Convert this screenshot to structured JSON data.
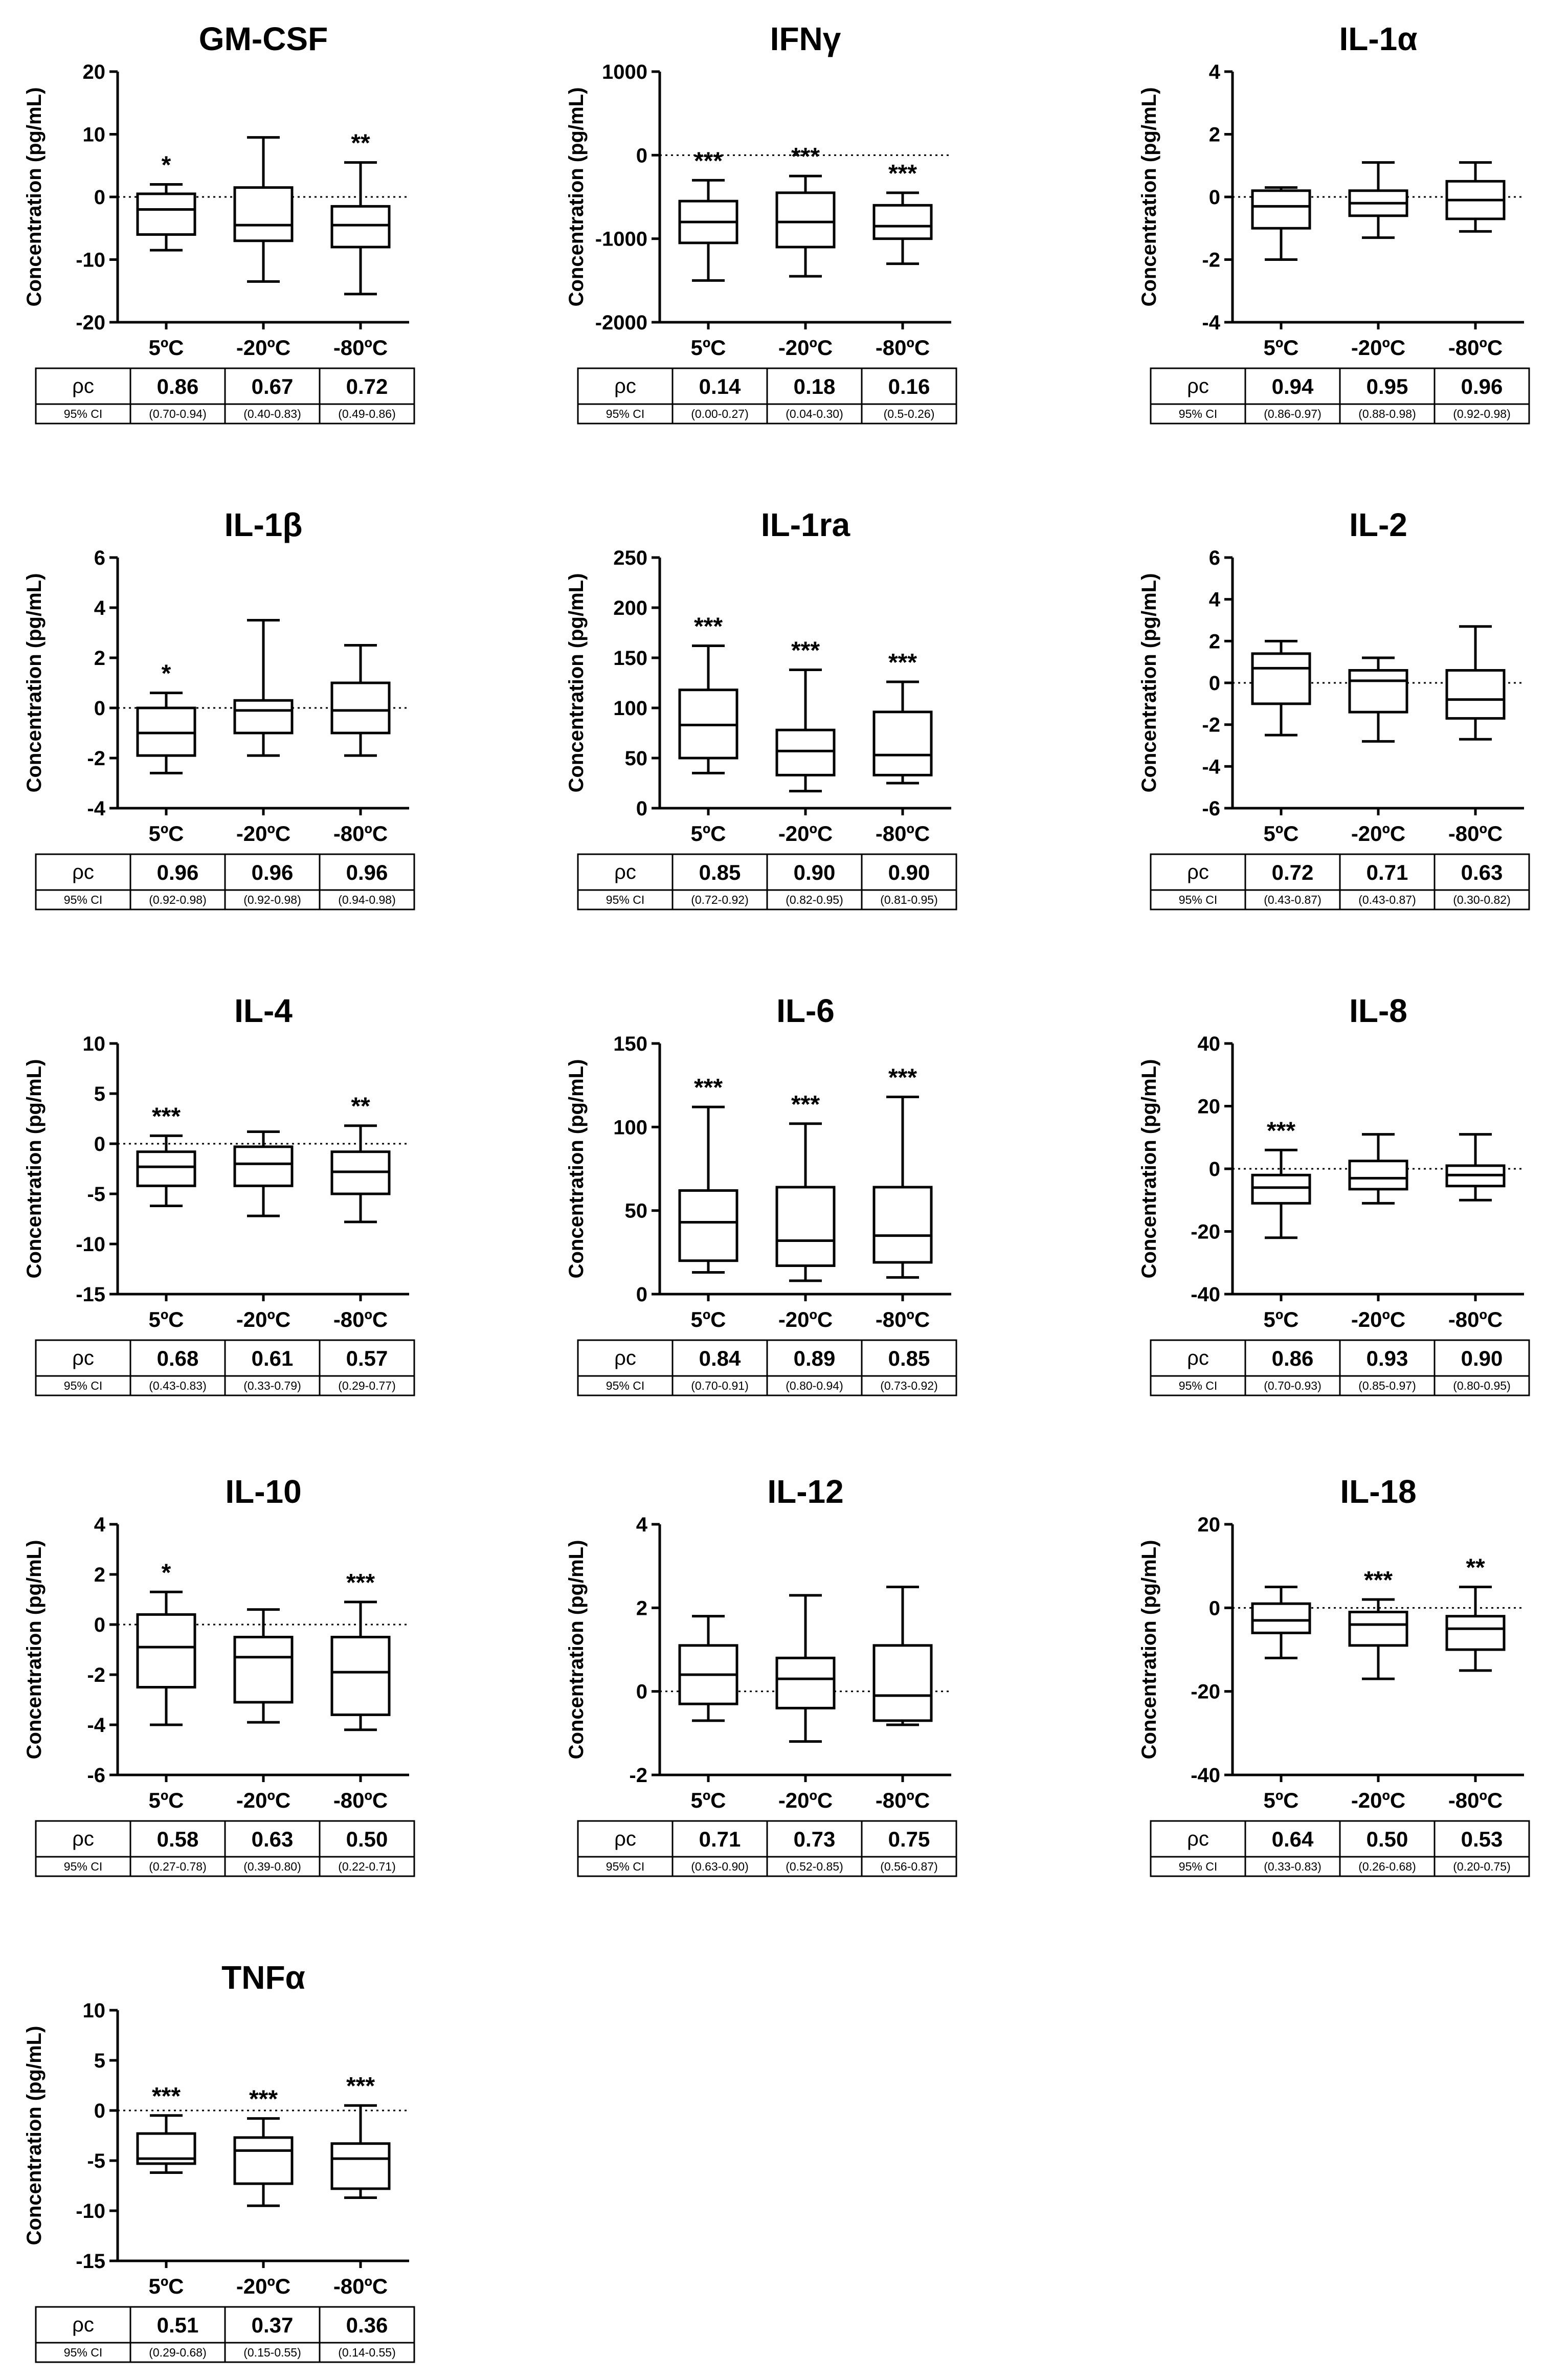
{
  "figure": {
    "ylabel": "Concentration (pg/mL)",
    "categories": [
      "5ºC",
      "-20ºC",
      "-80ºC"
    ],
    "row_labels": {
      "rho": "ρc",
      "ci": "95% CI"
    }
  },
  "chart_data": [
    {
      "type": "boxplot",
      "title": "GM-CSF",
      "ylabel": "Concentration (pg/mL)",
      "ylim": [
        -20,
        20
      ],
      "yticks": [
        -20,
        -10,
        0,
        10,
        20
      ],
      "categories": [
        "5ºC",
        "-20ºC",
        "-80ºC"
      ],
      "boxes": [
        {
          "min": -8.5,
          "q1": -6,
          "median": -2,
          "q3": 0.5,
          "max": 2,
          "sig": "*"
        },
        {
          "min": -13.5,
          "q1": -7,
          "median": -4.5,
          "q3": 1.5,
          "max": 9.5,
          "sig": ""
        },
        {
          "min": -15.5,
          "q1": -8,
          "median": -4.5,
          "q3": -1.5,
          "max": 5.5,
          "sig": "**"
        }
      ],
      "rho": [
        "0.86",
        "0.67",
        "0.72"
      ],
      "ci": [
        "(0.70-0.94)",
        "(0.40-0.83)",
        "(0.49-0.86)"
      ]
    },
    {
      "type": "boxplot",
      "title": "IFNγ",
      "ylabel": "Concentration (pg/mL)",
      "ylim": [
        -2000,
        1000
      ],
      "yticks": [
        -2000,
        -1000,
        0,
        1000
      ],
      "categories": [
        "5ºC",
        "-20ºC",
        "-80ºC"
      ],
      "boxes": [
        {
          "min": -1500,
          "q1": -1050,
          "median": -800,
          "q3": -550,
          "max": -300,
          "sig": "***"
        },
        {
          "min": -1450,
          "q1": -1100,
          "median": -800,
          "q3": -450,
          "max": -250,
          "sig": "***"
        },
        {
          "min": -1300,
          "q1": -1000,
          "median": -850,
          "q3": -600,
          "max": -450,
          "sig": "***"
        }
      ],
      "rho": [
        "0.14",
        "0.18",
        "0.16"
      ],
      "ci": [
        "(0.00-0.27)",
        "(0.04-0.30)",
        "(0.5-0.26)"
      ]
    },
    {
      "type": "boxplot",
      "title": "IL-1α",
      "ylabel": "Concentration (pg/mL)",
      "ylim": [
        -4,
        4
      ],
      "yticks": [
        -4,
        -2,
        0,
        2,
        4
      ],
      "categories": [
        "5ºC",
        "-20ºC",
        "-80ºC"
      ],
      "boxes": [
        {
          "min": -2,
          "q1": -1,
          "median": -0.3,
          "q3": 0.2,
          "max": 0.3,
          "sig": ""
        },
        {
          "min": -1.3,
          "q1": -0.6,
          "median": -0.2,
          "q3": 0.2,
          "max": 1.1,
          "sig": ""
        },
        {
          "min": -1.1,
          "q1": -0.7,
          "median": -0.1,
          "q3": 0.5,
          "max": 1.1,
          "sig": ""
        }
      ],
      "rho": [
        "0.94",
        "0.95",
        "0.96"
      ],
      "ci": [
        "(0.86-0.97)",
        "(0.88-0.98)",
        "(0.92-0.98)"
      ]
    },
    {
      "type": "boxplot",
      "title": "IL-1β",
      "ylabel": "Concentration (pg/mL)",
      "ylim": [
        -4,
        6
      ],
      "yticks": [
        -4,
        -2,
        0,
        2,
        4,
        6
      ],
      "categories": [
        "5ºC",
        "-20ºC",
        "-80ºC"
      ],
      "boxes": [
        {
          "min": -2.6,
          "q1": -1.9,
          "median": -1,
          "q3": 0,
          "max": 0.6,
          "sig": "*"
        },
        {
          "min": -1.9,
          "q1": -1,
          "median": -0.1,
          "q3": 0.3,
          "max": 3.5,
          "sig": ""
        },
        {
          "min": -1.9,
          "q1": -1,
          "median": -0.1,
          "q3": 1,
          "max": 2.5,
          "sig": ""
        }
      ],
      "rho": [
        "0.96",
        "0.96",
        "0.96"
      ],
      "ci": [
        "(0.92-0.98)",
        "(0.92-0.98)",
        "(0.94-0.98)"
      ]
    },
    {
      "type": "boxplot",
      "title": "IL-1ra",
      "ylabel": "Concentration (pg/mL)",
      "ylim": [
        0,
        250
      ],
      "yticks": [
        0,
        50,
        100,
        150,
        200,
        250
      ],
      "categories": [
        "5ºC",
        "-20ºC",
        "-80ºC"
      ],
      "boxes": [
        {
          "min": 35,
          "q1": 50,
          "median": 83,
          "q3": 118,
          "max": 162,
          "sig": "***"
        },
        {
          "min": 17,
          "q1": 33,
          "median": 57,
          "q3": 78,
          "max": 138,
          "sig": "***"
        },
        {
          "min": 25,
          "q1": 33,
          "median": 53,
          "q3": 96,
          "max": 126,
          "sig": "***"
        }
      ],
      "rho": [
        "0.85",
        "0.90",
        "0.90"
      ],
      "ci": [
        "(0.72-0.92)",
        "(0.82-0.95)",
        "(0.81-0.95)"
      ]
    },
    {
      "type": "boxplot",
      "title": "IL-2",
      "ylabel": "Concentration (pg/mL)",
      "ylim": [
        -6,
        6
      ],
      "yticks": [
        -6,
        -4,
        -2,
        0,
        2,
        4,
        6
      ],
      "categories": [
        "5ºC",
        "-20ºC",
        "-80ºC"
      ],
      "boxes": [
        {
          "min": -2.5,
          "q1": -1,
          "median": 0.7,
          "q3": 1.4,
          "max": 2,
          "sig": ""
        },
        {
          "min": -2.8,
          "q1": -1.4,
          "median": 0.1,
          "q3": 0.6,
          "max": 1.2,
          "sig": ""
        },
        {
          "min": -2.7,
          "q1": -1.7,
          "median": -0.8,
          "q3": 0.6,
          "max": 2.7,
          "sig": ""
        }
      ],
      "rho": [
        "0.72",
        "0.71",
        "0.63"
      ],
      "ci": [
        "(0.43-0.87)",
        "(0.43-0.87)",
        "(0.30-0.82)"
      ]
    },
    {
      "type": "boxplot",
      "title": "IL-4",
      "ylabel": "Concentration (pg/mL)",
      "ylim": [
        -15,
        10
      ],
      "yticks": [
        -15,
        -10,
        -5,
        0,
        5,
        10
      ],
      "categories": [
        "5ºC",
        "-20ºC",
        "-80ºC"
      ],
      "boxes": [
        {
          "min": -6.2,
          "q1": -4.2,
          "median": -2.3,
          "q3": -0.8,
          "max": 0.8,
          "sig": "***"
        },
        {
          "min": -7.2,
          "q1": -4.2,
          "median": -2,
          "q3": -0.3,
          "max": 1.2,
          "sig": ""
        },
        {
          "min": -7.8,
          "q1": -5,
          "median": -2.8,
          "q3": -0.8,
          "max": 1.8,
          "sig": "**"
        }
      ],
      "rho": [
        "0.68",
        "0.61",
        "0.57"
      ],
      "ci": [
        "(0.43-0.83)",
        "(0.33-0.79)",
        "(0.29-0.77)"
      ]
    },
    {
      "type": "boxplot",
      "title": "IL-6",
      "ylabel": "Concentration (pg/mL)",
      "ylim": [
        0,
        150
      ],
      "yticks": [
        0,
        50,
        100,
        150
      ],
      "categories": [
        "5ºC",
        "-20ºC",
        "-80ºC"
      ],
      "boxes": [
        {
          "min": 13,
          "q1": 20,
          "median": 43,
          "q3": 62,
          "max": 112,
          "sig": "***"
        },
        {
          "min": 8,
          "q1": 17,
          "median": 32,
          "q3": 64,
          "max": 102,
          "sig": "***"
        },
        {
          "min": 10,
          "q1": 19,
          "median": 35,
          "q3": 64,
          "max": 118,
          "sig": "***"
        }
      ],
      "rho": [
        "0.84",
        "0.89",
        "0.85"
      ],
      "ci": [
        "(0.70-0.91)",
        "(0.80-0.94)",
        "(0.73-0.92)"
      ]
    },
    {
      "type": "boxplot",
      "title": "IL-8",
      "ylabel": "Concentration (pg/mL)",
      "ylim": [
        -40,
        40
      ],
      "yticks": [
        -40,
        -20,
        0,
        20,
        40
      ],
      "categories": [
        "5ºC",
        "-20ºC",
        "-80ºC"
      ],
      "boxes": [
        {
          "min": -22,
          "q1": -11,
          "median": -6,
          "q3": -2,
          "max": 6,
          "sig": "***"
        },
        {
          "min": -11,
          "q1": -6.5,
          "median": -3,
          "q3": 2.5,
          "max": 11,
          "sig": ""
        },
        {
          "min": -10,
          "q1": -5.5,
          "median": -2,
          "q3": 1,
          "max": 11,
          "sig": ""
        }
      ],
      "rho": [
        "0.86",
        "0.93",
        "0.90"
      ],
      "ci": [
        "(0.70-0.93)",
        "(0.85-0.97)",
        "(0.80-0.95)"
      ]
    },
    {
      "type": "boxplot",
      "title": "IL-10",
      "ylabel": "Concentration (pg/mL)",
      "ylim": [
        -6,
        4
      ],
      "yticks": [
        -6,
        -4,
        -2,
        0,
        2,
        4
      ],
      "categories": [
        "5ºC",
        "-20ºC",
        "-80ºC"
      ],
      "boxes": [
        {
          "min": -4,
          "q1": -2.5,
          "median": -0.9,
          "q3": 0.4,
          "max": 1.3,
          "sig": "*"
        },
        {
          "min": -3.9,
          "q1": -3.1,
          "median": -1.3,
          "q3": -0.5,
          "max": 0.6,
          "sig": ""
        },
        {
          "min": -4.2,
          "q1": -3.6,
          "median": -1.9,
          "q3": -0.5,
          "max": 0.9,
          "sig": "***"
        }
      ],
      "rho": [
        "0.58",
        "0.63",
        "0.50"
      ],
      "ci": [
        "(0.27-0.78)",
        "(0.39-0.80)",
        "(0.22-0.71)"
      ]
    },
    {
      "type": "boxplot",
      "title": "IL-12",
      "ylabel": "Concentration (pg/mL)",
      "ylim": [
        -2,
        4
      ],
      "yticks": [
        -2,
        0,
        2,
        4
      ],
      "categories": [
        "5ºC",
        "-20ºC",
        "-80ºC"
      ],
      "boxes": [
        {
          "min": -0.7,
          "q1": -0.3,
          "median": 0.4,
          "q3": 1.1,
          "max": 1.8,
          "sig": ""
        },
        {
          "min": -1.2,
          "q1": -0.4,
          "median": 0.3,
          "q3": 0.8,
          "max": 2.3,
          "sig": ""
        },
        {
          "min": -0.8,
          "q1": -0.7,
          "median": -0.1,
          "q3": 1.1,
          "max": 2.5,
          "sig": ""
        }
      ],
      "rho": [
        "0.71",
        "0.73",
        "0.75"
      ],
      "ci": [
        "(0.63-0.90)",
        "(0.52-0.85)",
        "(0.56-0.87)"
      ]
    },
    {
      "type": "boxplot",
      "title": "IL-18",
      "ylabel": "Concentration (pg/mL)",
      "ylim": [
        -40,
        20
      ],
      "yticks": [
        -40,
        -20,
        0,
        20
      ],
      "categories": [
        "5ºC",
        "-20ºC",
        "-80ºC"
      ],
      "boxes": [
        {
          "min": -12,
          "q1": -6,
          "median": -3,
          "q3": 1,
          "max": 5,
          "sig": ""
        },
        {
          "min": -17,
          "q1": -9,
          "median": -4,
          "q3": -1,
          "max": 2,
          "sig": "***"
        },
        {
          "min": -15,
          "q1": -10,
          "median": -5,
          "q3": -2,
          "max": 5,
          "sig": "**"
        }
      ],
      "rho": [
        "0.64",
        "0.50",
        "0.53"
      ],
      "ci": [
        "(0.33-0.83)",
        "(0.26-0.68)",
        "(0.20-0.75)"
      ]
    },
    {
      "type": "boxplot",
      "title": "TNFα",
      "ylabel": "Concentration (pg/mL)",
      "ylim": [
        -15,
        10
      ],
      "yticks": [
        -15,
        -10,
        -5,
        0,
        5,
        10
      ],
      "categories": [
        "5ºC",
        "-20ºC",
        "-80ºC"
      ],
      "boxes": [
        {
          "min": -6.2,
          "q1": -5.3,
          "median": -4.8,
          "q3": -2.3,
          "max": -0.5,
          "sig": "***"
        },
        {
          "min": -9.5,
          "q1": -7.3,
          "median": -4,
          "q3": -2.7,
          "max": -0.8,
          "sig": "***"
        },
        {
          "min": -8.7,
          "q1": -7.8,
          "median": -4.8,
          "q3": -3.3,
          "max": 0.5,
          "sig": "***"
        }
      ],
      "rho": [
        "0.51",
        "0.37",
        "0.36"
      ],
      "ci": [
        "(0.29-0.68)",
        "(0.15-0.55)",
        "(0.14-0.55)"
      ]
    }
  ]
}
